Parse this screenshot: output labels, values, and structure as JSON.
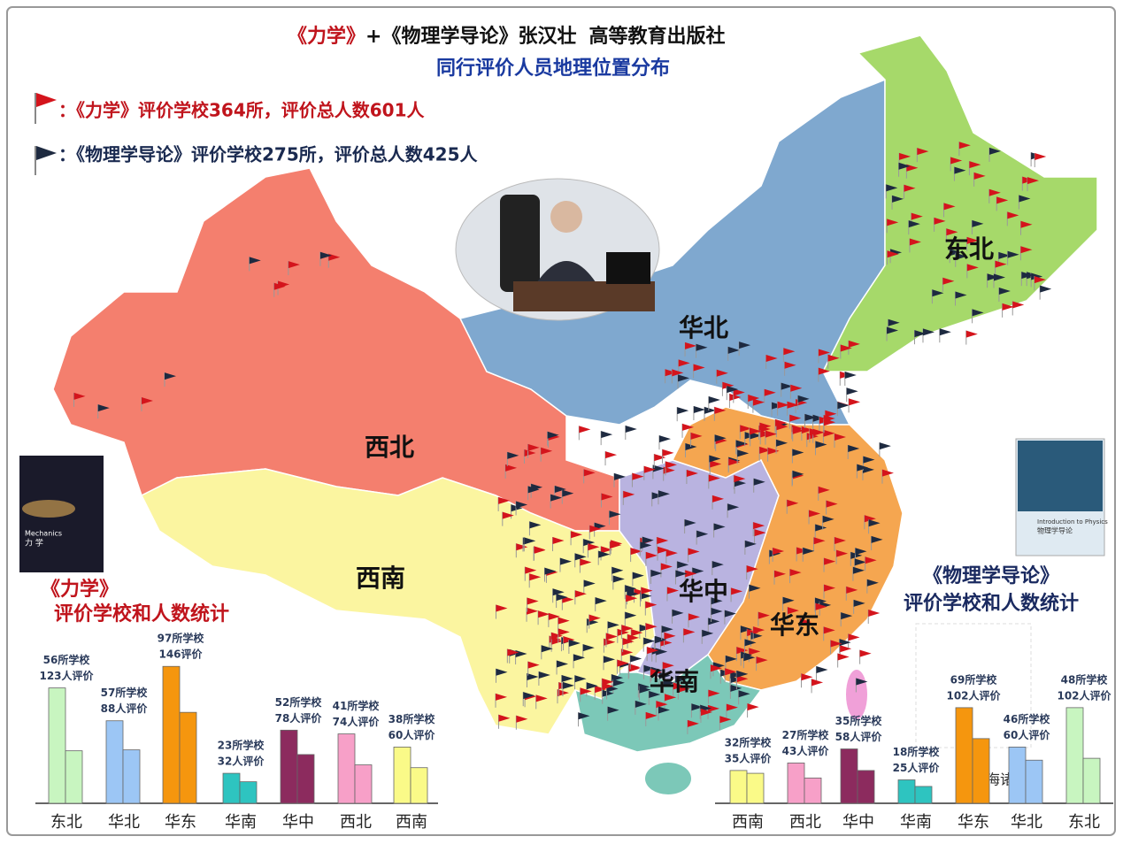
{
  "header": {
    "title": [
      "《力学》",
      "+《物理学导论》张汉壮",
      "高等教育出版社"
    ],
    "subtitle": "同行评价人员地理位置分布",
    "legend": [
      "：《力学》评价学校364所，评价总人数601人",
      "：《物理学导论》评价学校275所，评价总人数425人"
    ]
  },
  "map": {
    "regions": [
      "东北",
      "华北",
      "西北",
      "西南",
      "华中",
      "华东",
      "华南"
    ],
    "island_label": "海诸"
  },
  "covers": [
    {
      "title": "Mechanics",
      "subtitle": "力 学"
    },
    {
      "title": "Introduction to Physics",
      "subtitle": "物理学导论"
    }
  ],
  "chart_data": [
    {
      "type": "bar",
      "title": "《力学》",
      "subtitle": "评价学校和人数统计",
      "categories": [
        "东北",
        "华北",
        "华东",
        "华南",
        "华中",
        "西北",
        "西南"
      ],
      "colors": [
        "#c8f5c0",
        "#9cc6f5",
        "#f5960e",
        "#2ec4c0",
        "#8c2b5e",
        "#f7a0c8",
        "#fafa88"
      ],
      "series": [
        {
          "values": [
            123,
            88,
            146,
            32,
            78,
            74,
            60
          ],
          "value_labels": [
            "123人评价",
            "88人评价",
            "146评价",
            "32人评价",
            "78人评价",
            "74人评价",
            "60人评价"
          ]
        },
        {
          "values": [
            56,
            57,
            97,
            23,
            52,
            41,
            38
          ],
          "value_labels": [
            "56所学校",
            "57所学校",
            "97所学校",
            "23所学校",
            "52所学校",
            "41所学校",
            "38所学校"
          ]
        }
      ]
    },
    {
      "type": "bar",
      "title": "《物理学导论》",
      "subtitle": "评价学校和人数统计",
      "categories": [
        "西南",
        "西北",
        "华中",
        "华南",
        "华东",
        "华北",
        "东北"
      ],
      "colors": [
        "#fafa88",
        "#f7a0c8",
        "#8c2b5e",
        "#2ec4c0",
        "#f5960e",
        "#9cc6f5",
        "#c8f5c0"
      ],
      "series": [
        {
          "values": [
            35,
            43,
            58,
            25,
            102,
            60,
            102
          ],
          "value_labels": [
            "35人评价",
            "43人评价",
            "58人评价",
            "25人评价",
            "102人评价",
            "60人评价",
            "102人评价"
          ]
        },
        {
          "values": [
            32,
            27,
            35,
            18,
            69,
            46,
            48
          ],
          "value_labels": [
            "32所学校",
            "27所学校",
            "35所学校",
            "18所学校",
            "69所学校",
            "46所学校",
            "48所学校"
          ]
        }
      ]
    }
  ]
}
